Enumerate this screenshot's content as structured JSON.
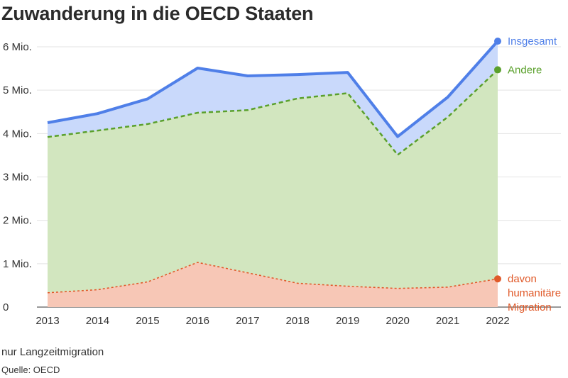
{
  "title": "Zuwanderung in die OECD Staaten",
  "note": "nur Langzeitmigration",
  "source": "Quelle: OECD",
  "colors": {
    "total_line": "#4f7fe8",
    "total_fill": "#c9d9fb",
    "other_line": "#5aa02c",
    "other_fill": "#d2e6bf",
    "humanitarian_line": "#e05a2a",
    "humanitarian_fill": "#f7c7b6",
    "grid": "#e3e3e3",
    "axis": "#333333"
  },
  "chart_data": {
    "type": "area",
    "x": [
      "2013",
      "2014",
      "2015",
      "2016",
      "2017",
      "2018",
      "2019",
      "2020",
      "2021",
      "2022"
    ],
    "ylim": [
      0,
      6000000
    ],
    "yticks": [
      0,
      1000000,
      2000000,
      3000000,
      4000000,
      5000000,
      6000000
    ],
    "ytick_labels": [
      "0",
      "1 Mio.",
      "2 Mio.",
      "3 Mio.",
      "4 Mio.",
      "5 Mio.",
      "6 Mio."
    ],
    "grid": true,
    "series": [
      {
        "key": "total",
        "name": "Insgesamt",
        "values": [
          4250000,
          4460000,
          4800000,
          5510000,
          5330000,
          5360000,
          5410000,
          3930000,
          4840000,
          6130000
        ]
      },
      {
        "key": "other",
        "name": "Andere",
        "values": [
          3920000,
          4070000,
          4220000,
          4480000,
          4540000,
          4810000,
          4930000,
          3510000,
          4380000,
          5470000
        ]
      },
      {
        "key": "humanitarian",
        "name": "davon humanitäre Migration",
        "name_lines": [
          "davon",
          "humanitäre",
          "Migration"
        ],
        "values": [
          330000,
          400000,
          580000,
          1030000,
          790000,
          550000,
          480000,
          430000,
          460000,
          650000
        ]
      }
    ]
  }
}
